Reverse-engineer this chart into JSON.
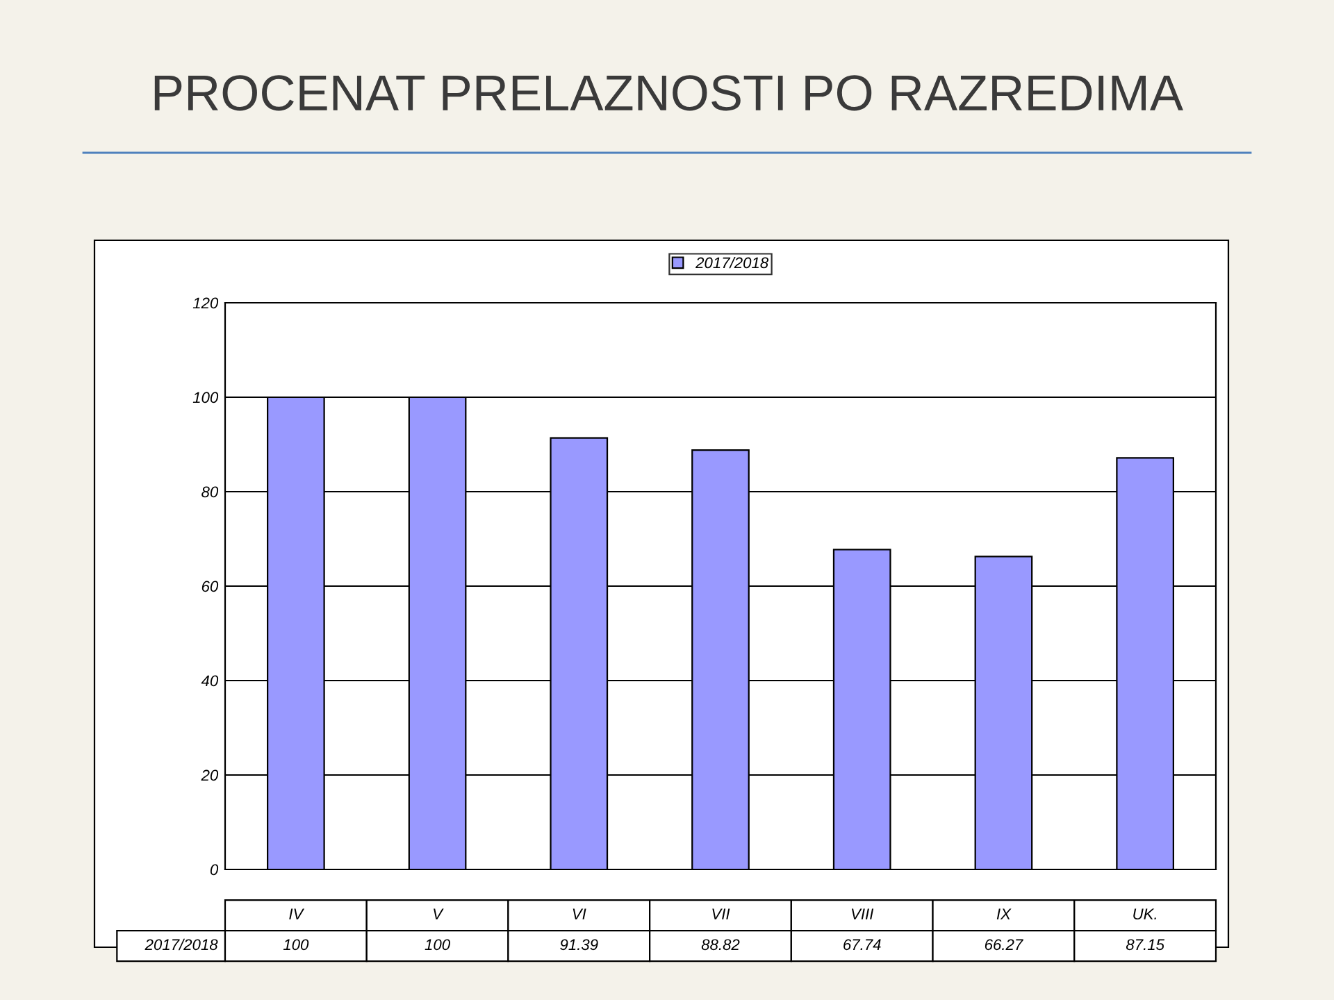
{
  "chart_data": {
    "type": "bar",
    "title": "PROCENAT PRELAZNOSTI PO RAZREDIMA",
    "categories": [
      "IV",
      "V",
      "VI",
      "VII",
      "VIII",
      "IX",
      "UK."
    ],
    "series": [
      {
        "name": "2017/2018",
        "color": "#9999ff",
        "values": [
          100,
          100,
          91.39,
          88.82,
          67.74,
          66.27,
          87.15
        ]
      }
    ],
    "ylim": [
      0,
      120
    ],
    "yticks": [
      0,
      20,
      40,
      60,
      80,
      100,
      120
    ],
    "grid": "y",
    "legend": "top",
    "data_labels": true
  }
}
